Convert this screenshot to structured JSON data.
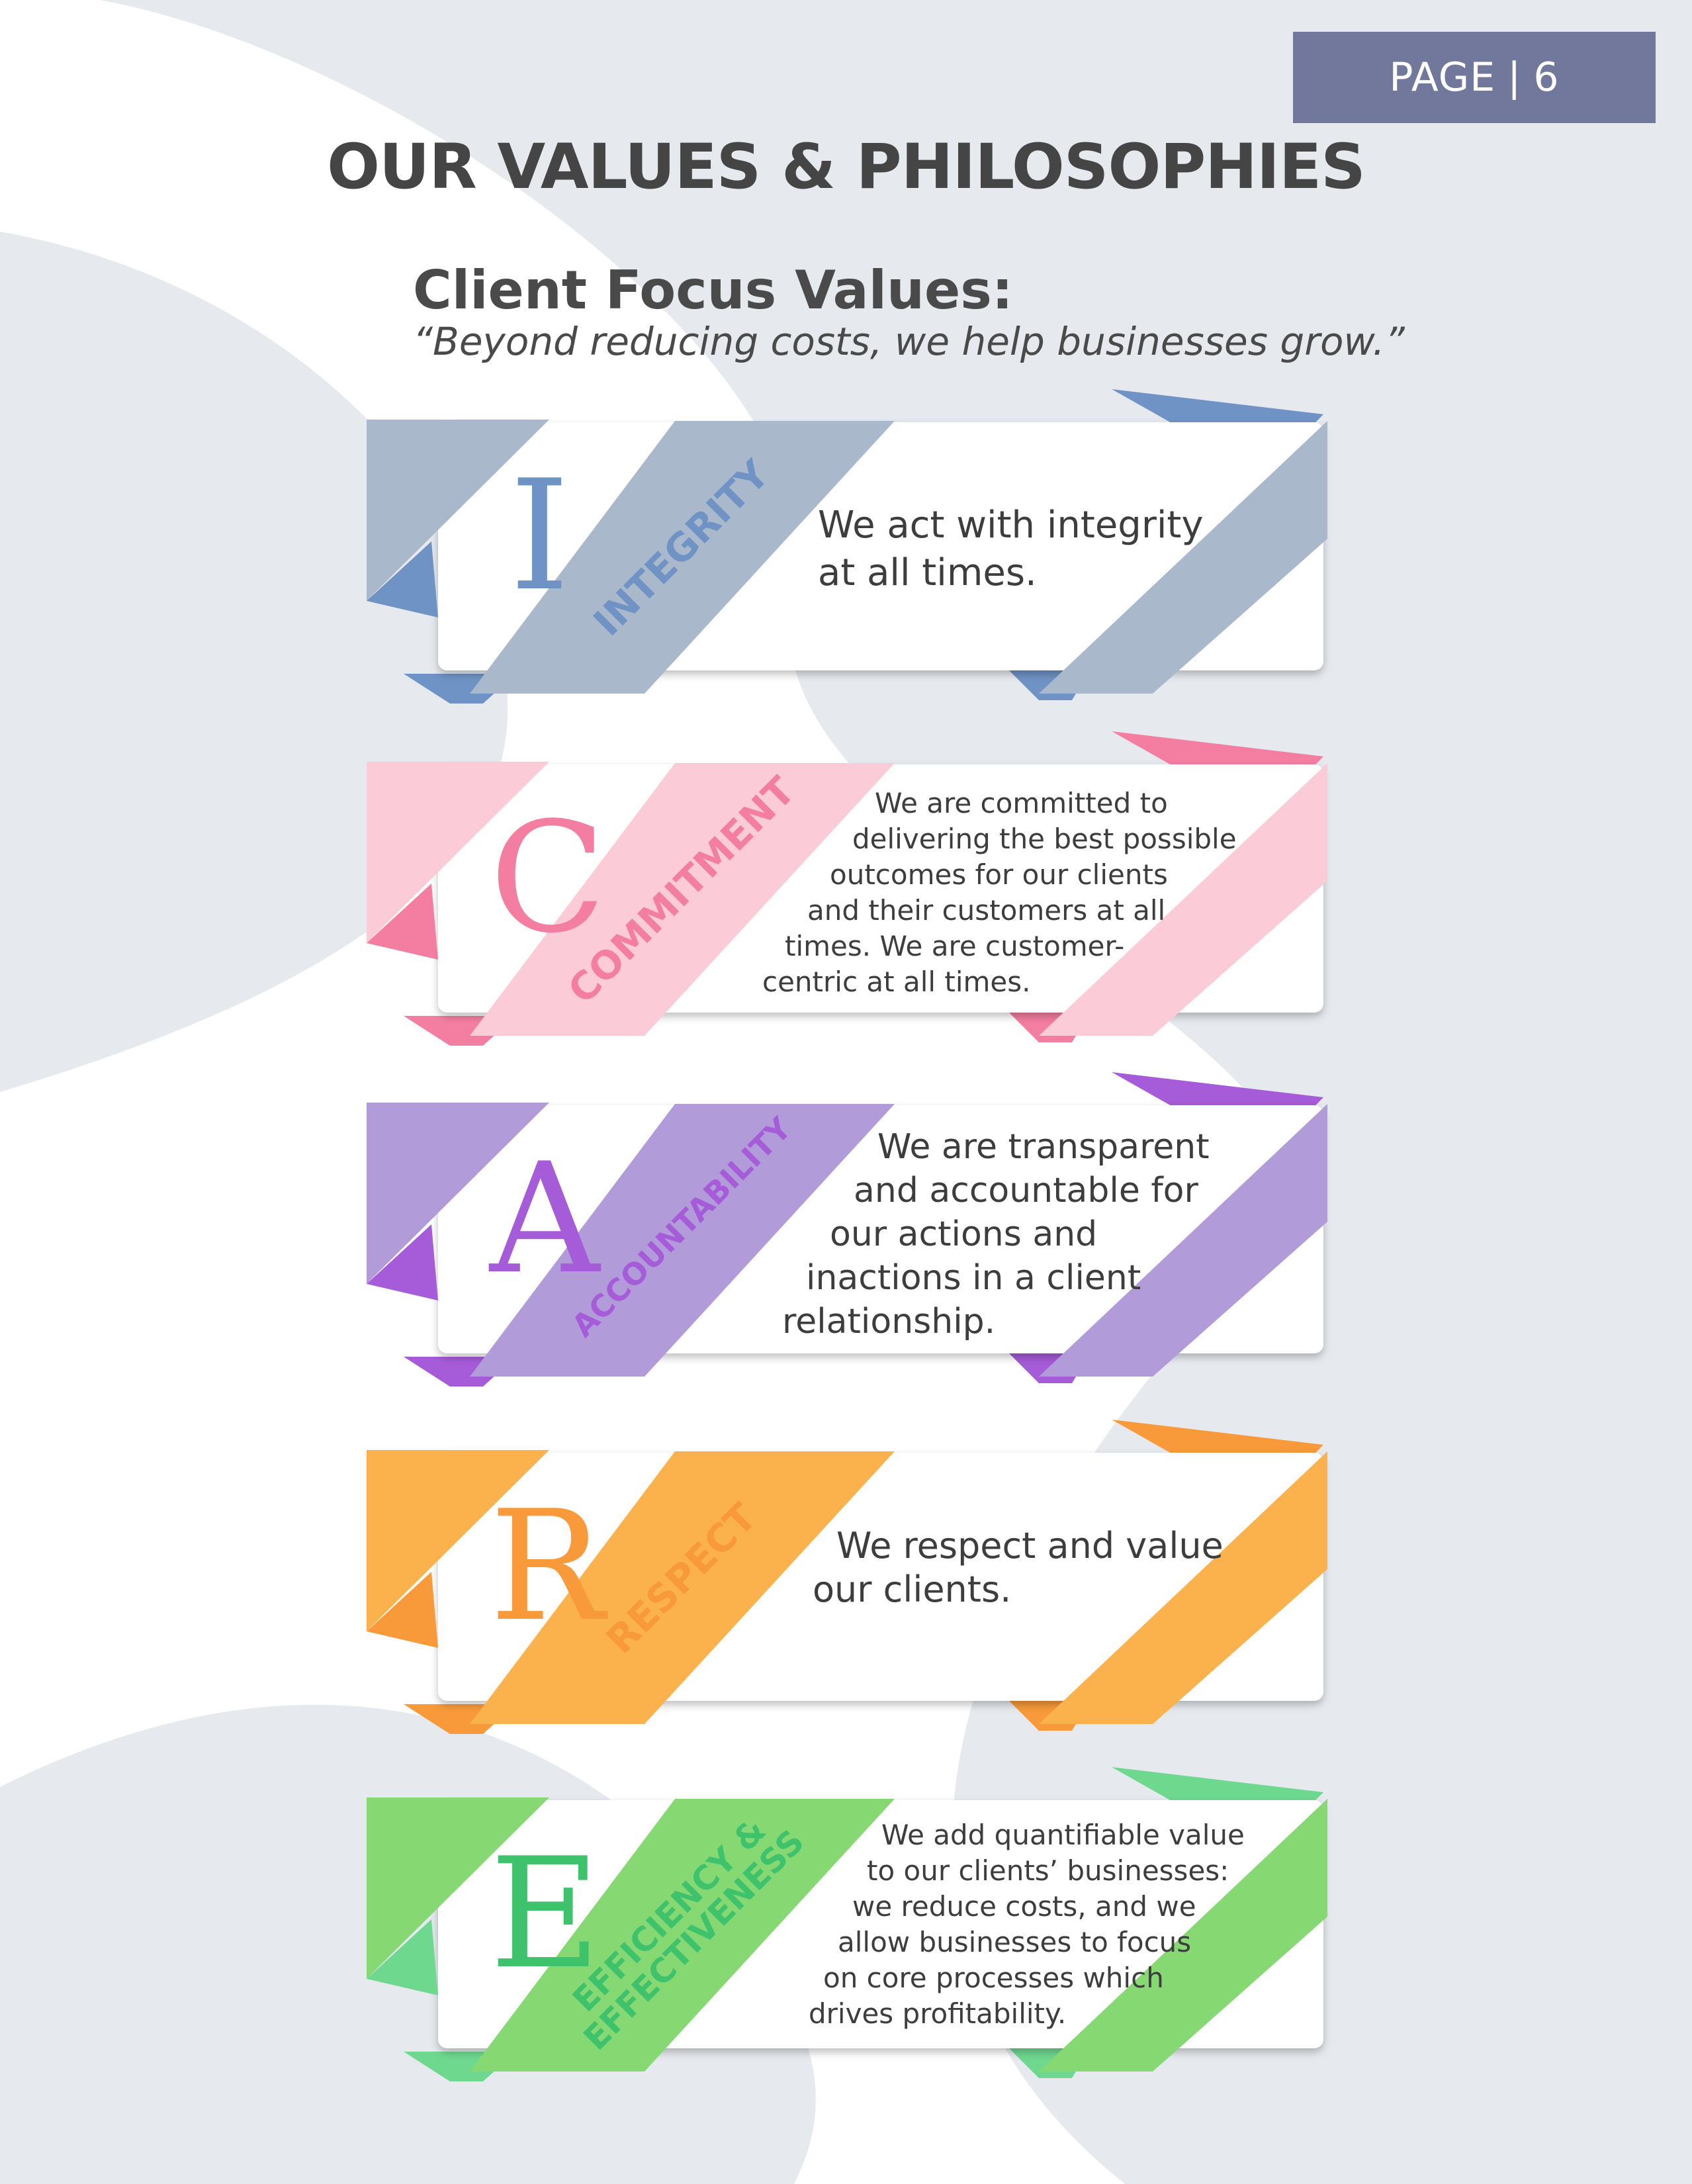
{
  "page_tab": {
    "label": "PAGE",
    "number": "6"
  },
  "title": "OUR VALUES & PHILOSOPHIES",
  "subtitle": "Client Focus Values:",
  "tagline": "“Beyond reducing costs, we help businesses grow.”",
  "values": [
    {
      "letter": "I",
      "ribbon": [
        "INTEGRITY"
      ],
      "lines": [
        "We act with integrity",
        "at all times."
      ],
      "colors": {
        "light": "#a9b8cb",
        "dark": "#6f93c4",
        "text": "#6f93c4"
      }
    },
    {
      "letter": "C",
      "ribbon": [
        "COMMITMENT"
      ],
      "lines": [
        "We are committed to",
        "delivering the best possible",
        "outcomes for our clients",
        "and their customers at all",
        "times.  We are customer-",
        "centric at all times."
      ],
      "colors": {
        "light": "#fbcbd7",
        "dark": "#f47ea1",
        "text": "#f47ea1"
      }
    },
    {
      "letter": "A",
      "ribbon": [
        "ACCOUNTABILITY"
      ],
      "lines": [
        "We are transparent",
        "and accountable for",
        "our actions and",
        "inactions in a client",
        "relationship."
      ],
      "colors": {
        "light": "#b19bd9",
        "dark": "#a65bd8",
        "text": "#a65bd8"
      }
    },
    {
      "letter": "R",
      "ribbon": [
        "RESPECT"
      ],
      "lines": [
        "We respect and value",
        "our clients."
      ],
      "colors": {
        "light": "#fbb24d",
        "dark": "#f89a3a",
        "text": "#f89a3a"
      }
    },
    {
      "letter": "E",
      "ribbon": [
        "EFFICIENCY &",
        "EFFECTIVENESS"
      ],
      "lines": [
        "We add quantifiable value",
        "to our clients’ businesses:",
        "we reduce costs, and we",
        "allow businesses to focus",
        "on core processes which",
        "drives profitability."
      ],
      "colors": {
        "light": "#86d872",
        "dark": "#6ed88f",
        "text": "#3ec26c"
      }
    }
  ]
}
